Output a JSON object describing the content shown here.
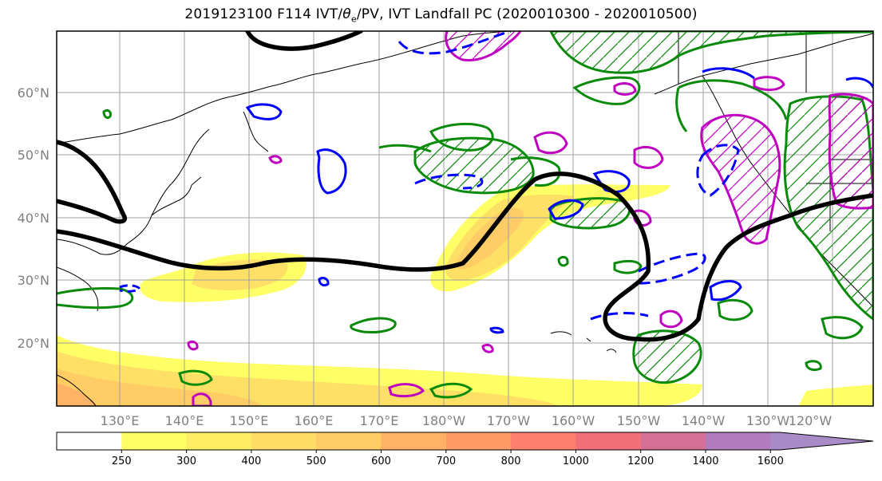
{
  "title": {
    "prefix": "2019123100 F114 IVT/",
    "theta": "θ",
    "theta_sub": "e",
    "suffix": "/PV, IVT Landfall PC (2020010300 - 2020010500)"
  },
  "map": {
    "lat_labels": [
      "60°N",
      "50°N",
      "40°N",
      "30°N",
      "20°N"
    ],
    "lon_labels": [
      "130°E",
      "140°E",
      "150°E",
      "160°E",
      "170°E",
      "180°W",
      "170°W",
      "160°W",
      "150°W",
      "140°W",
      "130°W",
      "120°W"
    ],
    "lat_values": [
      60,
      50,
      40,
      30,
      20
    ],
    "lon_values": [
      130,
      140,
      150,
      160,
      170,
      180,
      -170,
      -160,
      -150,
      -140,
      -130,
      -120
    ],
    "extent": {
      "lon_min": 120,
      "lon_max": 247,
      "lat_min": 10,
      "lat_max": 70
    },
    "ivt_fill_colors": {
      "250": "#ffff66",
      "300": "#ffe066",
      "400": "#ffcc66",
      "500": "#ffb366",
      "600": "#ff9f6a"
    },
    "contour_colors": {
      "jet": "#000000",
      "pos": "#0a8a0a",
      "neg": "#0000ff",
      "pv": "#c000c0"
    }
  },
  "colorbar": {
    "colors": [
      "#ffffff",
      "#ffff66",
      "#ffee66",
      "#ffdd66",
      "#ffcc66",
      "#ffb366",
      "#ff9966",
      "#ff7f6f",
      "#f0707a",
      "#d47095",
      "#b07cbc",
      "#a98bc8"
    ],
    "tick_labels": [
      "250",
      "300",
      "400",
      "500",
      "600",
      "700",
      "800",
      "1000",
      "1200",
      "1400",
      "1600"
    ]
  }
}
